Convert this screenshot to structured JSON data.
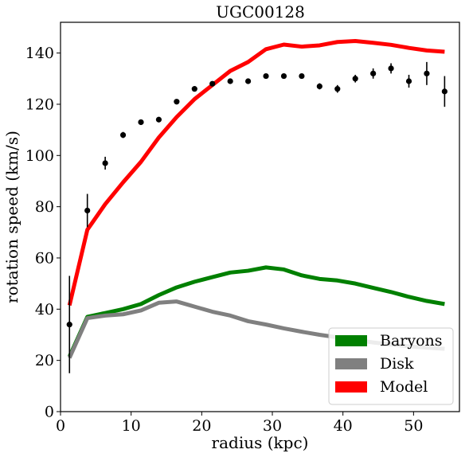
{
  "chart_data": {
    "type": "line",
    "title": "UGC00128",
    "xlabel": "radius (kpc)",
    "ylabel": "rotation speed (km/s)",
    "xlim": [
      0,
      56.5
    ],
    "ylim": [
      0,
      152
    ],
    "x_ticks": [
      0,
      10,
      20,
      30,
      40,
      50
    ],
    "y_ticks": [
      0,
      20,
      40,
      60,
      80,
      100,
      120,
      140
    ],
    "grid": false,
    "legend_position": "lower-right",
    "observed": {
      "x": [
        1.27,
        3.8,
        6.33,
        8.86,
        11.39,
        13.92,
        16.45,
        18.98,
        21.51,
        24.04,
        26.57,
        29.1,
        31.63,
        34.16,
        36.69,
        39.22,
        41.75,
        44.28,
        46.81,
        49.34,
        51.87,
        54.4
      ],
      "y": [
        34,
        78.5,
        97,
        108,
        113,
        114,
        121,
        126,
        128,
        129,
        129,
        131,
        131,
        131,
        127,
        126,
        130,
        132,
        134,
        129,
        132,
        125
      ],
      "err": [
        19,
        6.5,
        2.5,
        1.2,
        0.8,
        0.8,
        0.8,
        0.8,
        0.8,
        0.8,
        0.8,
        0.8,
        0.8,
        0.8,
        1.2,
        1.5,
        1.5,
        2,
        2,
        2.5,
        4.5,
        6
      ]
    },
    "series": [
      {
        "name": "Baryons",
        "color": "#008000",
        "x": [
          1.27,
          3.8,
          6.33,
          8.86,
          11.39,
          13.92,
          16.45,
          18.98,
          21.51,
          24.04,
          26.57,
          29.1,
          31.63,
          34.16,
          36.69,
          39.22,
          41.75,
          44.28,
          46.81,
          49.34,
          51.87,
          54.4
        ],
        "y": [
          21.5,
          37,
          38.5,
          40,
          42,
          45.5,
          48.5,
          50.7,
          52.5,
          54.3,
          55,
          56.3,
          55.5,
          53.2,
          51.8,
          51.2,
          50,
          48.3,
          46.7,
          44.8,
          43.2,
          42
        ]
      },
      {
        "name": "Disk",
        "color": "#808080",
        "x": [
          1.27,
          3.8,
          6.33,
          8.86,
          11.39,
          13.92,
          16.45,
          18.98,
          21.51,
          24.04,
          26.57,
          29.1,
          31.63,
          34.16,
          36.69,
          39.22,
          41.75,
          44.28,
          46.81,
          49.34,
          51.87,
          54.4
        ],
        "y": [
          21,
          36.5,
          37.5,
          38,
          39.5,
          42.5,
          43,
          41,
          39,
          37.5,
          35.3,
          34,
          32.5,
          31.2,
          30,
          29,
          28,
          27,
          26.2,
          25.5,
          25,
          24.5
        ]
      },
      {
        "name": "Model",
        "color": "#ff0000",
        "x": [
          1.27,
          3.8,
          6.33,
          8.86,
          11.39,
          13.92,
          16.45,
          18.98,
          21.51,
          24.04,
          26.57,
          29.1,
          31.63,
          34.16,
          36.69,
          39.22,
          41.75,
          44.28,
          46.81,
          49.34,
          51.87,
          54.4
        ],
        "y": [
          41.5,
          71,
          81,
          89.5,
          97.5,
          107,
          115,
          122,
          127.5,
          133,
          136.5,
          141.5,
          143.3,
          142.5,
          143,
          144.3,
          144.7,
          144,
          143.2,
          142,
          141,
          140.5
        ]
      }
    ]
  }
}
